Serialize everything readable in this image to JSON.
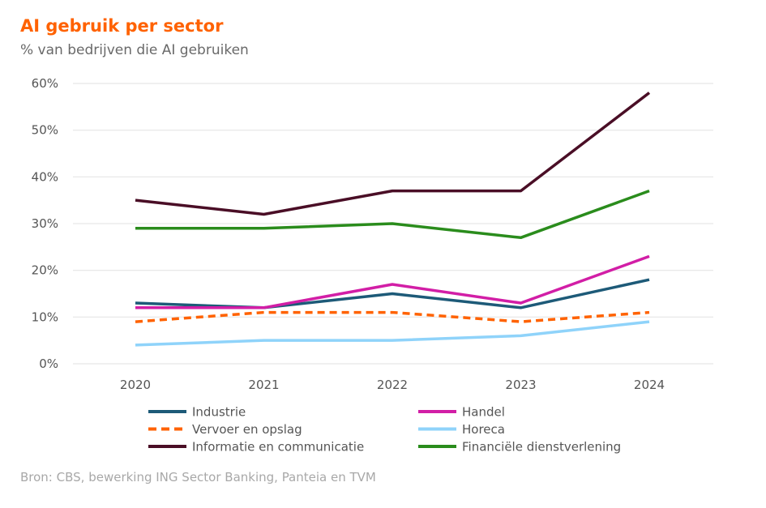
{
  "chart_data": {
    "type": "line",
    "title": "AI gebruik per sector",
    "subtitle": "% van bedrijven die AI gebruiken",
    "source": "Bron: CBS, bewerking ING Sector Banking, Panteia en TVM",
    "x": [
      "2020",
      "2021",
      "2022",
      "2023",
      "2024"
    ],
    "ylim": [
      0,
      60
    ],
    "yticks": [
      "0%",
      "10%",
      "20%",
      "30%",
      "40%",
      "50%",
      "60%"
    ],
    "grid": true,
    "legend_placement": "bottom",
    "series": [
      {
        "name": "Industrie",
        "color": "#1d5a78",
        "dashed": false,
        "values": [
          13,
          12,
          15,
          12,
          18
        ]
      },
      {
        "name": "Handel",
        "color": "#d21ea6",
        "dashed": false,
        "values": [
          12,
          12,
          17,
          13,
          23
        ]
      },
      {
        "name": "Vervoer en opslag",
        "color": "#ff6200",
        "dashed": true,
        "values": [
          9,
          11,
          11,
          9,
          11
        ]
      },
      {
        "name": "Horeca",
        "color": "#8fd3fa",
        "dashed": false,
        "values": [
          4,
          5,
          5,
          6,
          9
        ]
      },
      {
        "name": "Informatie en communicatie",
        "color": "#4a0e26",
        "dashed": false,
        "values": [
          35,
          32,
          37,
          37,
          58
        ]
      },
      {
        "name": "Financiële dienstverlening",
        "color": "#2a8c1c",
        "dashed": false,
        "values": [
          29,
          29,
          30,
          27,
          37
        ]
      }
    ]
  }
}
